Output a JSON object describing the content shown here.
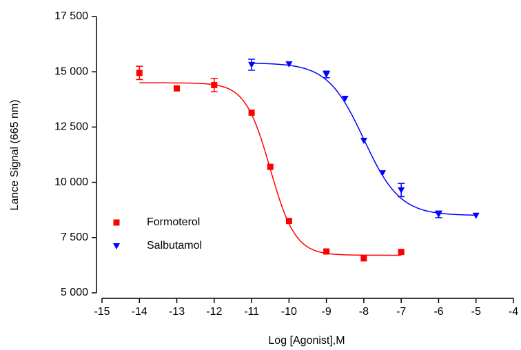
{
  "chart_data": {
    "type": "dose-response",
    "x_label": "Log [Agonist],M",
    "y_label": "Lance Signal (665 nm)",
    "xlim": [
      -15,
      -4
    ],
    "xticks": [
      -15,
      -14,
      -13,
      -12,
      -11,
      -10,
      -9,
      -8,
      -7,
      -6,
      -5,
      -4
    ],
    "ylim": [
      5000,
      17500
    ],
    "yticks": [
      {
        "value": 5000,
        "label": "5 000"
      },
      {
        "value": 7500,
        "label": "7 500"
      },
      {
        "value": 10000,
        "label": "10 000"
      },
      {
        "value": 12500,
        "label": "12 500"
      },
      {
        "value": 15000,
        "label": "15 000"
      },
      {
        "value": 17500,
        "label": "17 500"
      }
    ],
    "series": [
      {
        "name": "Formoterol",
        "color": "#ff0000",
        "marker": "square",
        "x": [
          -14,
          -13,
          -12,
          -11,
          -10.5,
          -10,
          -9,
          -8,
          -7
        ],
        "values": [
          14950,
          14250,
          14400,
          13150,
          10700,
          8250,
          6870,
          6560,
          6850
        ],
        "errors": [
          300,
          null,
          300,
          null,
          null,
          null,
          null,
          null,
          null
        ],
        "fit": {
          "top": 14500,
          "bottom": 6700,
          "log_ec50": -10.5,
          "hill": 1.3,
          "x_range": [
            -14,
            -7
          ]
        }
      },
      {
        "name": "Salbutamol",
        "color": "#0000ff",
        "marker": "triangle-down",
        "x": [
          -11,
          -10,
          -9,
          -8.5,
          -8,
          -7.5,
          -7,
          -6,
          -5
        ],
        "values": [
          15320,
          15350,
          14880,
          13790,
          11890,
          10420,
          9650,
          8550,
          8500
        ],
        "errors": [
          250,
          null,
          150,
          null,
          null,
          null,
          300,
          150,
          null
        ],
        "fit": {
          "top": 15400,
          "bottom": 8500,
          "log_ec50": -8.0,
          "hill": 0.9,
          "x_range": [
            -11,
            -5
          ]
        }
      }
    ]
  }
}
